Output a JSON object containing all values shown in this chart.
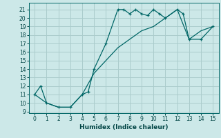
{
  "xlabel": "Humidex (Indice chaleur)",
  "bg_color": "#cce8e8",
  "grid_color": "#aacccc",
  "line_color": "#006666",
  "xlim": [
    -0.5,
    15.5
  ],
  "ylim": [
    8.8,
    21.8
  ],
  "yticks": [
    9,
    10,
    11,
    12,
    13,
    14,
    15,
    16,
    17,
    18,
    19,
    20,
    21
  ],
  "xticks": [
    0,
    1,
    2,
    3,
    4,
    5,
    6,
    7,
    8,
    9,
    10,
    11,
    12,
    13,
    14,
    15
  ],
  "line1_x": [
    0,
    0.5,
    1,
    2,
    3,
    4,
    4.5,
    5,
    6,
    7,
    7.5,
    8,
    8.5,
    9,
    9.5,
    10,
    10.5,
    11,
    12,
    12.5,
    13,
    14,
    15
  ],
  "line1_y": [
    11,
    12,
    10,
    9.5,
    9.5,
    11,
    11.3,
    14,
    17,
    21,
    21,
    20.5,
    21,
    20.5,
    20.3,
    21,
    20.5,
    20,
    21,
    20.5,
    17.5,
    17.5,
    19
  ],
  "line2_x": [
    0,
    1,
    2,
    3,
    4,
    5,
    6,
    7,
    8,
    9,
    10,
    11,
    12,
    13,
    14,
    15
  ],
  "line2_y": [
    11,
    10,
    9.5,
    9.5,
    11,
    13.5,
    15,
    16.5,
    17.5,
    18.5,
    19,
    20,
    21,
    17.5,
    18.5,
    19
  ]
}
